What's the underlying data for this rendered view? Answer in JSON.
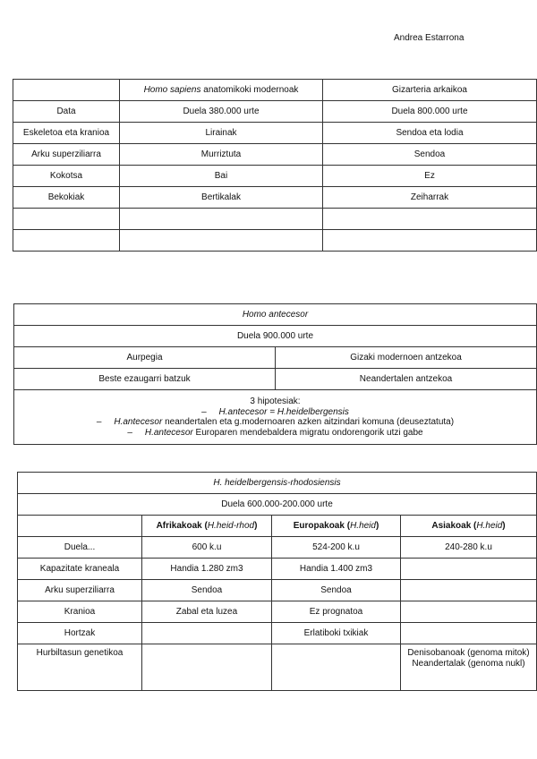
{
  "author": "Andrea Estarrona",
  "table1": {
    "header": [
      "",
      "Homo sapiens",
      "anatomikoki modernoak",
      "Gizarteria arkaikoa"
    ],
    "rows": [
      [
        "Data",
        "Duela 380.000 urte",
        "Duela 800.000 urte"
      ],
      [
        "Eskeletoa eta kranioa",
        "Lirainak",
        "Sendoa eta lodia"
      ],
      [
        "Arku superziliarra",
        "Murriztuta",
        "Sendoa"
      ],
      [
        "Kokotsa",
        "Bai",
        "Ez"
      ],
      [
        "Bekokiak",
        "Bertikalak",
        "Zeiharrak"
      ],
      [
        "",
        "",
        ""
      ],
      [
        "",
        "",
        ""
      ]
    ]
  },
  "table2": {
    "title": "Homo antecesor",
    "date": "Duela 900.000 urte",
    "rows": [
      [
        "Aurpegia",
        "Gizaki modernoen antzekoa"
      ],
      [
        "Beste ezaugarri batzuk",
        "Neandertalen antzekoa"
      ]
    ],
    "hyp_title": "3 hipotesiak:",
    "hyp": [
      {
        "it": "H.antecesor = H.heidelbergensis",
        "txt": ""
      },
      {
        "it": "H.antecesor",
        "txt": " neandertalen eta g.modernoaren azken aitzindari komuna (deuseztatuta)"
      },
      {
        "it": "H.antecesor",
        "txt": " Europaren mendebaldera migratu ondorengorik utzi gabe"
      }
    ]
  },
  "table3": {
    "title": "H. heidelbergensis-rhodosiensis",
    "date": "Duela 600.000-200.000 urte",
    "cols": [
      {
        "b": "Afrikakoak",
        "i": "H.heid-rhod"
      },
      {
        "b": "Europakoak",
        "i": "H.heid"
      },
      {
        "b": "Asiakoak",
        "i": "H.heid"
      }
    ],
    "rows": [
      [
        "Duela...",
        "600 k.u",
        "524-200 k.u",
        "240-280 k.u"
      ],
      [
        "Kapazitate kraneala",
        "Handia 1.280 zm3",
        "Handia 1.400 zm3",
        ""
      ],
      [
        "Arku superziliarra",
        "Sendoa",
        "Sendoa",
        ""
      ],
      [
        "Kranioa",
        "Zabal eta luzea",
        "Ez prognatoa",
        ""
      ],
      [
        "Hortzak",
        "",
        "Erlatiboki txikiak",
        ""
      ],
      [
        "Hurbiltasun genetikoa",
        "",
        "",
        "Denisobanoak (genoma mitok) Neandertalak (genoma nukl)"
      ]
    ]
  }
}
